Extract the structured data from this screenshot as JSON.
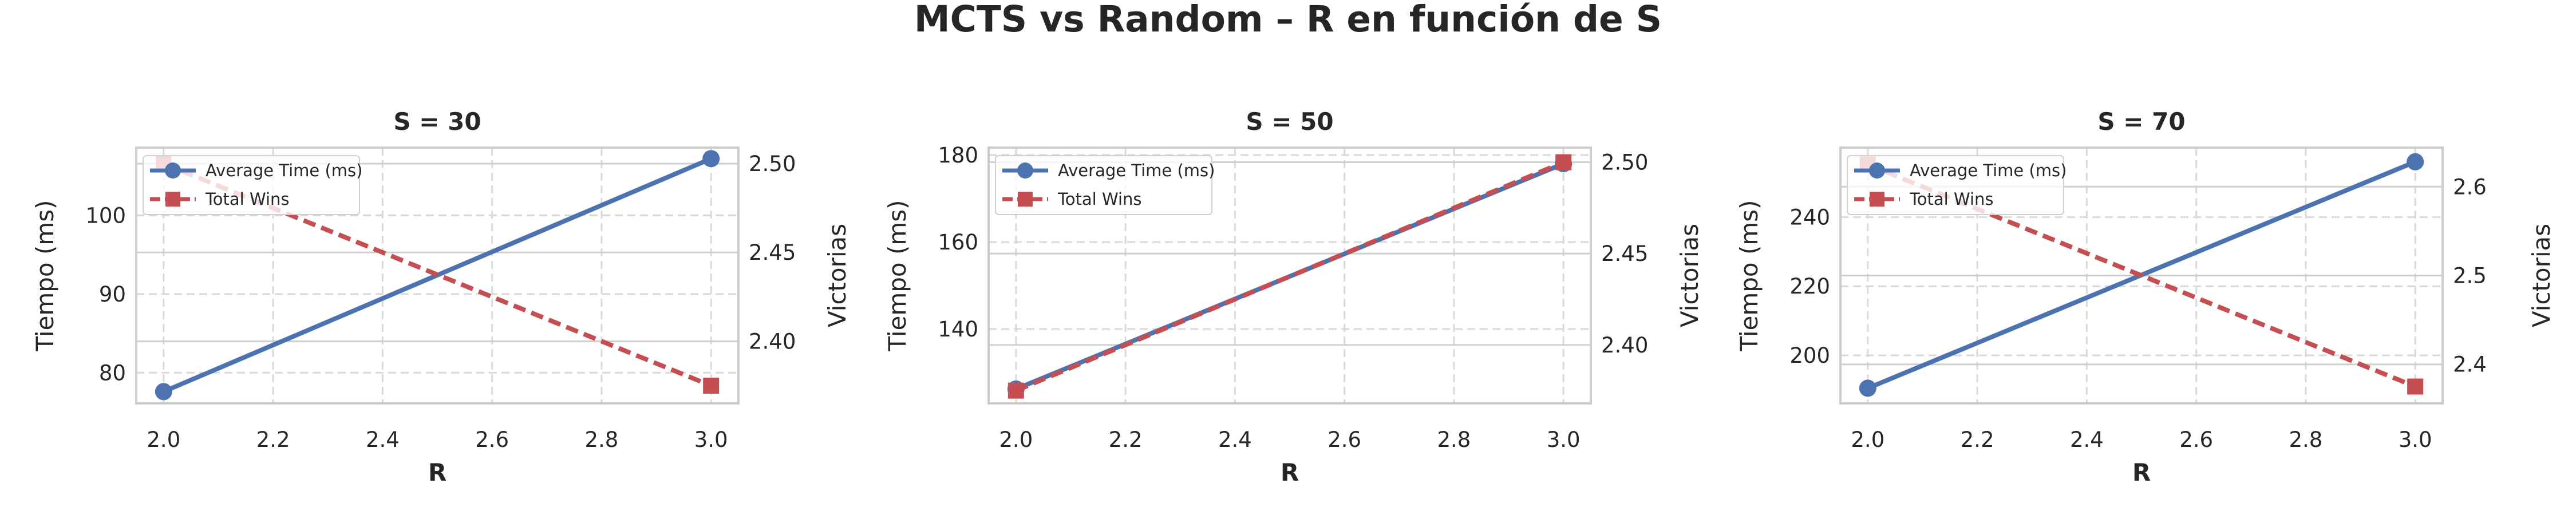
{
  "figure": {
    "title": "MCTS vs Random – R en función de S"
  },
  "colors": {
    "time": "#4c72b0",
    "wins": "#c44e52",
    "grid": "#d9d9d9",
    "spine": "#cccccc"
  },
  "chart_data": [
    {
      "type": "line",
      "title": "S = 30",
      "xlabel": "R",
      "ylabel": "Tiempo (ms)",
      "ylabel2": "Victorias",
      "x": [
        2.0,
        3.0
      ],
      "xlim": [
        1.95,
        3.05
      ],
      "xticks": [
        "2.0",
        "2.2",
        "2.4",
        "2.6",
        "2.8",
        "3.0"
      ],
      "ylim": [
        76.1,
        108.6
      ],
      "yticks": [
        "80",
        "90",
        "100"
      ],
      "y2lim": [
        2.365,
        2.509
      ],
      "y2ticks": [
        "2.40",
        "2.45",
        "2.50"
      ],
      "series": [
        {
          "name": "Average Time (ms)",
          "axis": "left",
          "marker": "circle",
          "style": "solid",
          "values": [
            77.6,
            107.2
          ]
        },
        {
          "name": "Total Wins",
          "axis": "right",
          "marker": "square",
          "style": "dashed",
          "values": [
            2.5,
            2.375
          ]
        }
      ],
      "legend": "upper-left",
      "grid": true
    },
    {
      "type": "line",
      "title": "S = 50",
      "xlabel": "R",
      "ylabel": "Tiempo (ms)",
      "ylabel2": "Victorias",
      "x": [
        2.0,
        3.0
      ],
      "xlim": [
        1.95,
        3.05
      ],
      "xticks": [
        "2.0",
        "2.2",
        "2.4",
        "2.6",
        "2.8",
        "3.0"
      ],
      "ylim": [
        122.9,
        181.7
      ],
      "yticks": [
        "140",
        "160",
        "180"
      ],
      "y2lim": [
        2.368,
        2.508
      ],
      "y2ticks": [
        "2.40",
        "2.45",
        "2.50"
      ],
      "series": [
        {
          "name": "Average Time (ms)",
          "axis": "left",
          "marker": "circle",
          "style": "solid",
          "values": [
            126.2,
            178.0
          ]
        },
        {
          "name": "Total Wins",
          "axis": "right",
          "marker": "square",
          "style": "dashed",
          "values": [
            2.375,
            2.5
          ]
        }
      ],
      "legend": "upper-left",
      "grid": true
    },
    {
      "type": "line",
      "title": "S = 70",
      "xlabel": "R",
      "ylabel": "Tiempo (ms)",
      "ylabel2": "Victorias",
      "x": [
        2.0,
        3.0
      ],
      "xlim": [
        1.95,
        3.05
      ],
      "xticks": [
        "2.0",
        "2.2",
        "2.4",
        "2.6",
        "2.8",
        "3.0"
      ],
      "ylim": [
        186.1,
        260.1
      ],
      "yticks": [
        "200",
        "220",
        "240"
      ],
      "y2lim": [
        2.356,
        2.644
      ],
      "y2ticks": [
        "2.4",
        "2.5",
        "2.6"
      ],
      "series": [
        {
          "name": "Average Time (ms)",
          "axis": "left",
          "marker": "circle",
          "style": "solid",
          "values": [
            190.5,
            256.0
          ]
        },
        {
          "name": "Total Wins",
          "axis": "right",
          "marker": "square",
          "style": "dashed",
          "values": [
            2.625,
            2.375
          ]
        }
      ],
      "legend": "upper-left",
      "grid": true
    }
  ]
}
